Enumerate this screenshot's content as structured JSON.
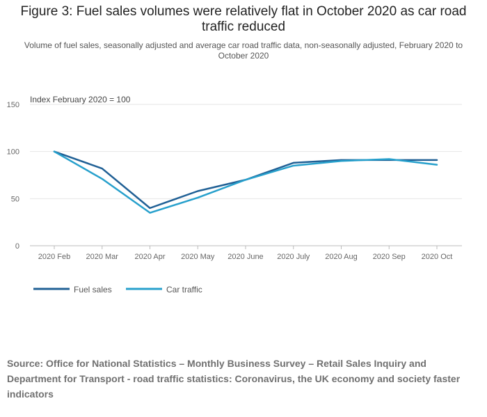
{
  "header": {
    "title_line1": "Figure 3: Fuel sales volumes were relatively flat in October 2020 as car road",
    "title_line2": "traffic reduced",
    "subtitle": "Volume of fuel sales, seasonally adjusted and average car road traffic data, non-seasonally adjusted, February 2020 to October 2020"
  },
  "chart_data": {
    "type": "line",
    "ylabel": "Index February 2020 = 100",
    "xlabel": "",
    "ylim": [
      0,
      150
    ],
    "yticks": [
      0,
      50,
      100,
      150
    ],
    "grid": true,
    "legend_position": "bottom-left",
    "categories": [
      "2020 Feb",
      "2020 Mar",
      "2020 Apr",
      "2020 May",
      "2020 June",
      "2020 July",
      "2020 Aug",
      "2020 Sep",
      "2020 Oct"
    ],
    "series": [
      {
        "name": "Fuel sales",
        "color": "#206095",
        "values": [
          100,
          82,
          40,
          58,
          70,
          88,
          91,
          91,
          91
        ]
      },
      {
        "name": "Car traffic",
        "color": "#27a0cc",
        "values": [
          100,
          71,
          35,
          51,
          70,
          85,
          90,
          92,
          86
        ]
      }
    ]
  },
  "source": {
    "text": "Source: Office for National Statistics – Monthly Business Survey – Retail Sales Inquiry and Department for Transport - road traffic statistics: Coronavirus, the UK economy and society faster indicators"
  }
}
